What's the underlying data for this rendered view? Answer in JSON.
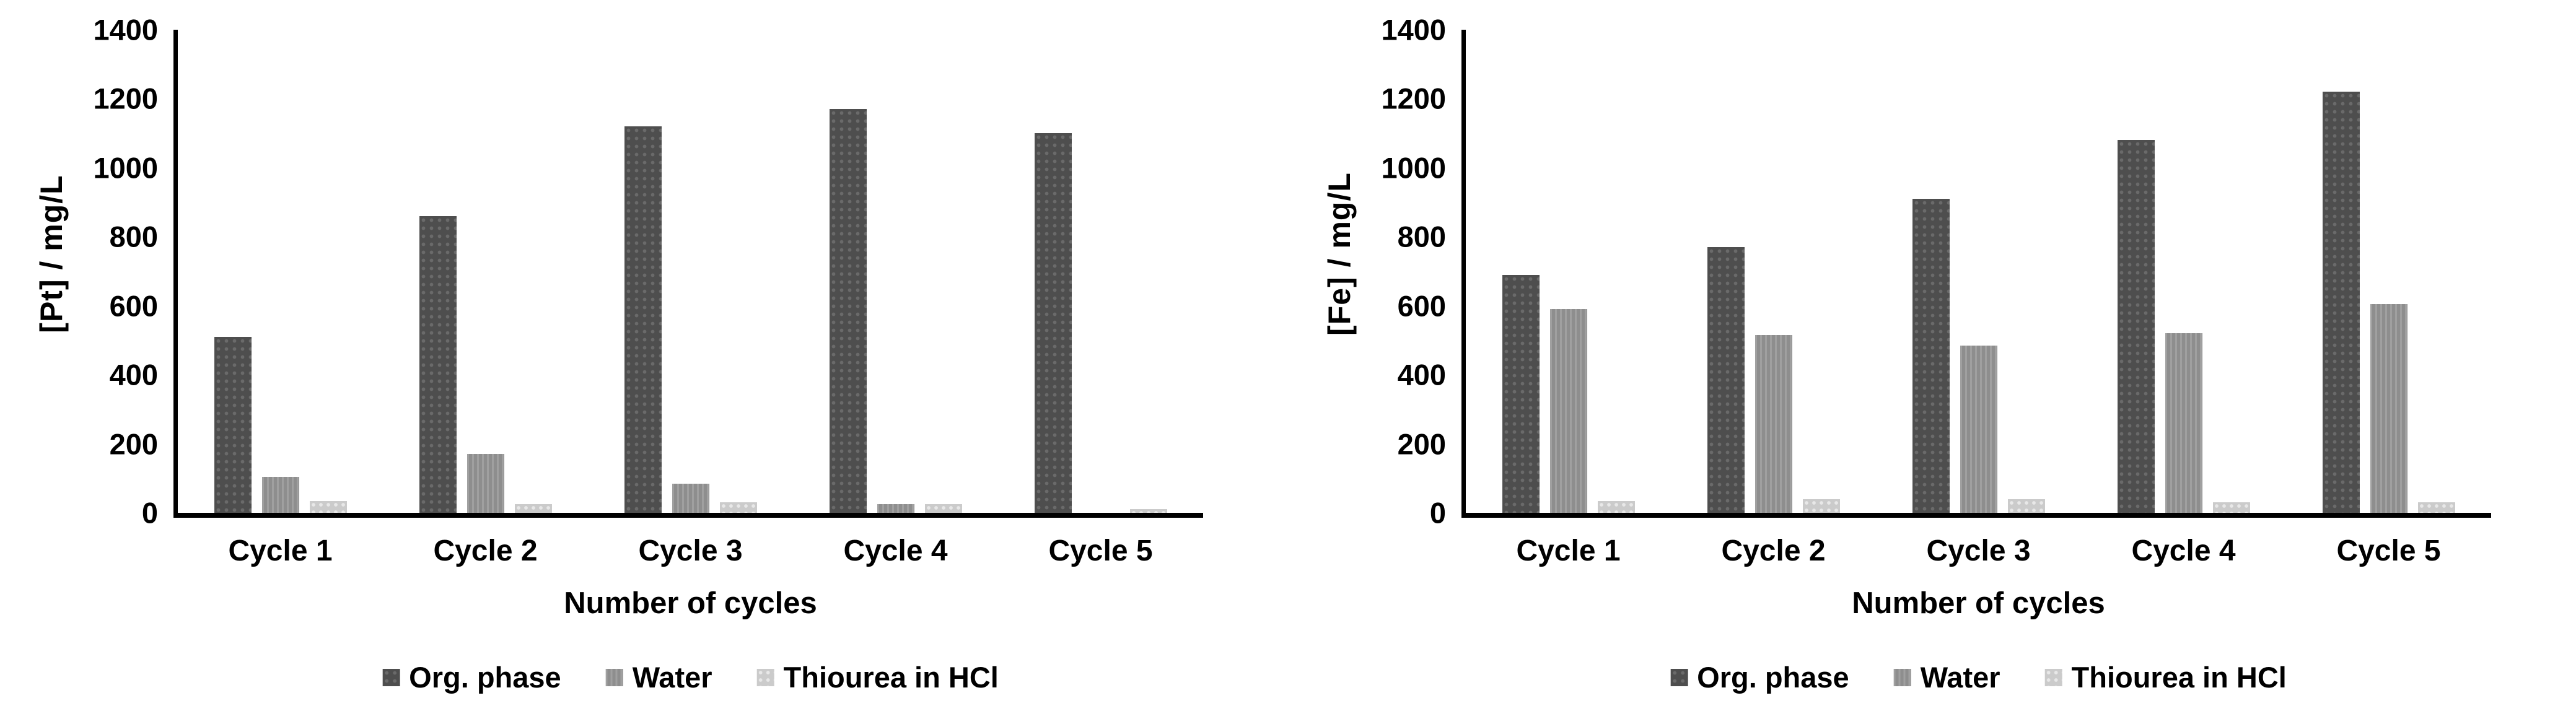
{
  "chart_data": [
    {
      "type": "bar",
      "title": "",
      "ylabel": "[Pt] / mg/L",
      "xlabel": "Number of cycles",
      "categories": [
        "Cycle 1",
        "Cycle 2",
        "Cycle 3",
        "Cycle 4",
        "Cycle 5"
      ],
      "series": [
        {
          "name": "Org. phase",
          "color": "#4e4e4e",
          "values": [
            510,
            860,
            1120,
            1170,
            1100
          ]
        },
        {
          "name": "Water",
          "color": "#8e8e8e",
          "values": [
            105,
            170,
            85,
            25,
            0
          ]
        },
        {
          "name": "Thiourea in HCl",
          "color": "#cbcbcb",
          "values": [
            35,
            25,
            30,
            25,
            10
          ]
        }
      ],
      "ylim": [
        0,
        1400
      ],
      "ytick_step": 200,
      "grid": false,
      "legend_position": "bottom"
    },
    {
      "type": "bar",
      "title": "",
      "ylabel": "[Fe] / mg/L",
      "xlabel": "Number of cycles",
      "categories": [
        "Cycle 1",
        "Cycle 2",
        "Cycle 3",
        "Cycle 4",
        "Cycle 5"
      ],
      "series": [
        {
          "name": "Org. phase",
          "color": "#4e4e4e",
          "values": [
            690,
            770,
            910,
            1080,
            1220
          ]
        },
        {
          "name": "Water",
          "color": "#8e8e8e",
          "values": [
            590,
            515,
            485,
            520,
            605
          ]
        },
        {
          "name": "Thiourea in HCl",
          "color": "#cbcbcb",
          "values": [
            35,
            40,
            40,
            30,
            30
          ]
        }
      ],
      "ylim": [
        0,
        1400
      ],
      "ytick_step": 200,
      "grid": false,
      "legend_position": "bottom"
    }
  ],
  "style": {
    "axis_color": "#000000",
    "text_color": "#000000",
    "background": "#ffffff"
  }
}
